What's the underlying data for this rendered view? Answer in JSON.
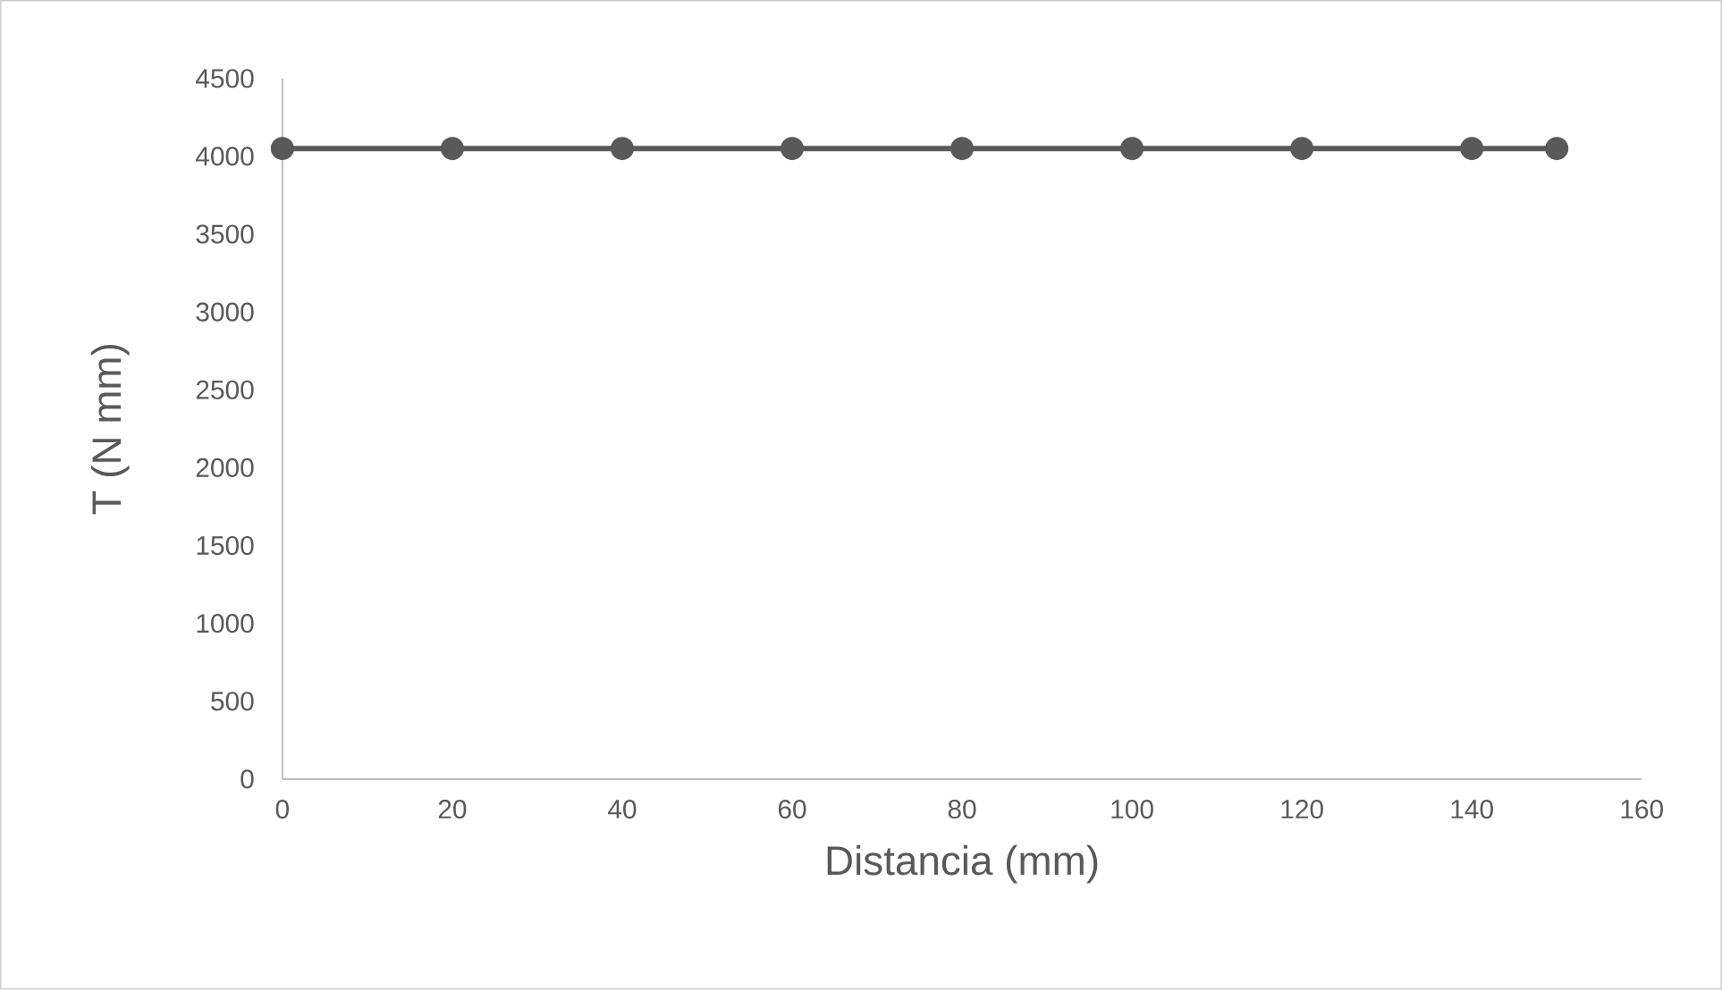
{
  "chart_data": {
    "type": "line",
    "xlabel": "Distancia (mm)",
    "ylabel": "T (N mm)",
    "x": [
      0,
      20,
      40,
      60,
      80,
      100,
      120,
      140,
      150
    ],
    "series": [
      {
        "color": "#595959",
        "values": [
          4050,
          4050,
          4050,
          4050,
          4050,
          4050,
          4050,
          4050,
          4050
        ]
      }
    ],
    "xlim": [
      0,
      160
    ],
    "xticks": [
      0,
      20,
      40,
      60,
      80,
      100,
      120,
      140,
      160
    ],
    "ylim": [
      0,
      4500
    ],
    "yticks": [
      0,
      500,
      1000,
      1500,
      2000,
      2500,
      3000,
      3500,
      4000,
      4500
    ],
    "marker": "circle",
    "line_style": "solid",
    "grid": false
  }
}
